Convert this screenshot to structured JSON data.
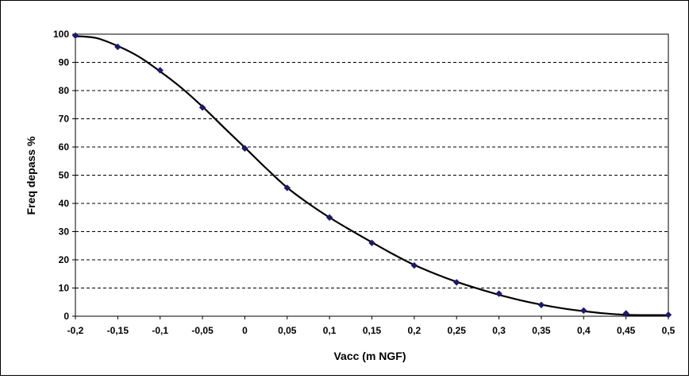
{
  "chart_data": {
    "type": "scatter",
    "title": "",
    "xlabel": "Vacc (m NGF)",
    "ylabel": "Freq depass %",
    "xlim": [
      -0.2,
      0.5
    ],
    "ylim": [
      0,
      100
    ],
    "x_ticks": [
      -0.2,
      -0.15,
      -0.1,
      -0.05,
      0,
      0.05,
      0.1,
      0.15,
      0.2,
      0.25,
      0.3,
      0.35,
      0.4,
      0.45,
      0.5
    ],
    "x_tick_labels": [
      "-0,2",
      "-0,15",
      "-0,1",
      "-0,05",
      "0",
      "0,05",
      "0,1",
      "0,15",
      "0,2",
      "0,25",
      "0,3",
      "0,35",
      "0,4",
      "0,45",
      "0,5"
    ],
    "y_ticks": [
      0,
      10,
      20,
      30,
      40,
      50,
      60,
      70,
      80,
      90,
      100
    ],
    "y_tick_labels": [
      "0",
      "10",
      "20",
      "30",
      "40",
      "50",
      "60",
      "70",
      "80",
      "90",
      "100"
    ],
    "grid": "horizontal dashed",
    "legend": "none",
    "series": [
      {
        "kind": "markers",
        "marker": "diamond",
        "color": "#1a1a6e",
        "x": [
          -0.2,
          -0.15,
          -0.1,
          -0.05,
          0,
          0.05,
          0.1,
          0.15,
          0.2,
          0.25,
          0.3,
          0.35,
          0.4,
          0.45,
          0.5
        ],
        "y": [
          99.5,
          95.5,
          87.2,
          74,
          59.5,
          45.5,
          35,
          26,
          18,
          12,
          8,
          4,
          2,
          1,
          0.5
        ]
      },
      {
        "kind": "trend-line",
        "color": "#000000",
        "x": [
          -0.2,
          -0.175,
          -0.15,
          -0.125,
          -0.1,
          -0.075,
          -0.05,
          -0.025,
          0,
          0.025,
          0.05,
          0.075,
          0.1,
          0.125,
          0.15,
          0.175,
          0.2,
          0.225,
          0.25,
          0.275,
          0.3,
          0.325,
          0.35,
          0.375,
          0.4,
          0.425,
          0.45,
          0.475,
          0.5
        ],
        "y": [
          99.3,
          98.6,
          95.8,
          92,
          86.8,
          81,
          74.3,
          67,
          59.8,
          52.5,
          45.6,
          40,
          35,
          30.5,
          26.2,
          22,
          18.2,
          15,
          12.2,
          9.8,
          7.6,
          5.7,
          4.1,
          2.8,
          1.8,
          1,
          0.5,
          0.4,
          0.4
        ]
      }
    ]
  }
}
